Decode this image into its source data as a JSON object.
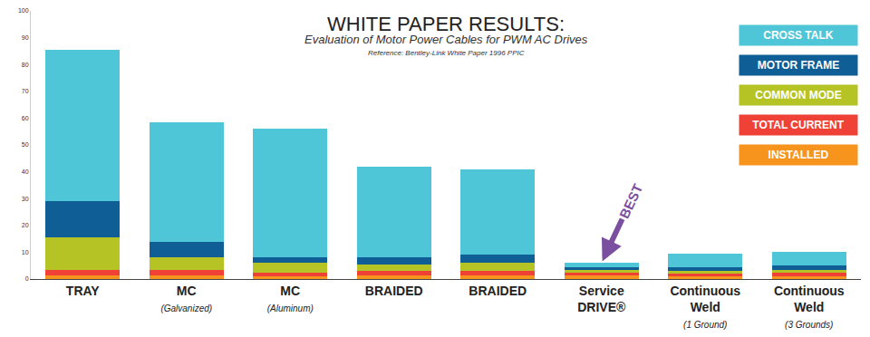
{
  "chart_data": {
    "type": "bar",
    "title": "WHITE PAPER RESULTS:",
    "subtitle": "Evaluation of Motor Power Cables for PWM AC Drives",
    "annotations": [
      {
        "text": "Reference: Bentley-Link White Paper 1996 PPIC"
      },
      {
        "text": "BEST",
        "x": "Service DRIVE®"
      }
    ],
    "categories": [
      "TRAY",
      "MC",
      "MC",
      "BRAIDED",
      "BRAIDED",
      "Service DRIVE®",
      "Continuous Weld",
      "Continuous Weld"
    ],
    "subcategories": [
      null,
      "(Galvanized)",
      "(Aluminum)",
      null,
      null,
      null,
      "(1 Ground)",
      "(3 Grounds)"
    ],
    "stacked": true,
    "series": [
      {
        "name": "INSTALLED",
        "color": "#f7941d",
        "values": [
          1.5,
          1.5,
          1,
          1.5,
          1.5,
          1.5,
          1,
          1
        ]
      },
      {
        "name": "TOTAL CURRENT",
        "color": "#ef4136",
        "values": [
          2,
          2,
          1.5,
          1.5,
          1.5,
          1,
          1,
          1.5
        ]
      },
      {
        "name": "COMMON MODE",
        "color": "#b5c424",
        "values": [
          12,
          4.5,
          3.5,
          2.5,
          3,
          1,
          1,
          1
        ]
      },
      {
        "name": "MOTOR FRAME",
        "color": "#0f5e96",
        "values": [
          13.5,
          6,
          2,
          2.5,
          3,
          1,
          1.5,
          1.5
        ]
      },
      {
        "name": "CROSS TALK",
        "color": "#4fc6d8",
        "values": [
          56.5,
          44.5,
          48,
          34,
          32,
          1.5,
          5,
          5
        ]
      }
    ],
    "ylim": [
      0,
      100
    ],
    "yticks": [
      0,
      10,
      20,
      30,
      40,
      50,
      60,
      70,
      80,
      90,
      100
    ],
    "grid": false,
    "legend": "upper right"
  }
}
